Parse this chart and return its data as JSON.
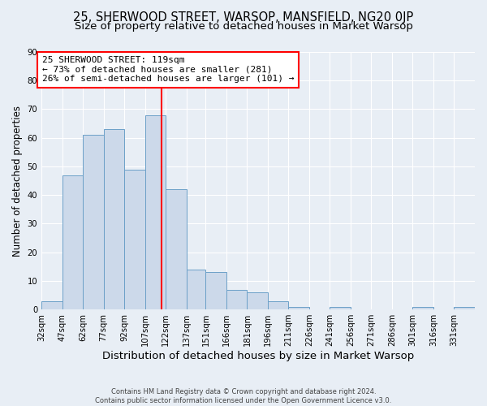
{
  "title1": "25, SHERWOOD STREET, WARSOP, MANSFIELD, NG20 0JP",
  "title2": "Size of property relative to detached houses in Market Warsop",
  "xlabel": "Distribution of detached houses by size in Market Warsop",
  "ylabel": "Number of detached properties",
  "footer1": "Contains HM Land Registry data © Crown copyright and database right 2024.",
  "footer2": "Contains public sector information licensed under the Open Government Licence v3.0.",
  "bin_labels": [
    "32sqm",
    "47sqm",
    "62sqm",
    "77sqm",
    "92sqm",
    "107sqm",
    "122sqm",
    "137sqm",
    "151sqm",
    "166sqm",
    "181sqm",
    "196sqm",
    "211sqm",
    "226sqm",
    "241sqm",
    "256sqm",
    "271sqm",
    "286sqm",
    "301sqm",
    "316sqm",
    "331sqm"
  ],
  "bin_edges": [
    32,
    47,
    62,
    77,
    92,
    107,
    122,
    137,
    151,
    166,
    181,
    196,
    211,
    226,
    241,
    256,
    271,
    286,
    301,
    316,
    331,
    346
  ],
  "bar_heights": [
    3,
    47,
    61,
    63,
    49,
    68,
    42,
    14,
    13,
    7,
    6,
    3,
    1,
    0,
    1,
    0,
    0,
    0,
    1,
    0,
    1
  ],
  "bar_color": "#ccd9ea",
  "bar_edge_color": "#6ca0c8",
  "property_value": 119,
  "vline_color": "red",
  "annotation_text": "25 SHERWOOD STREET: 119sqm\n← 73% of detached houses are smaller (281)\n26% of semi-detached houses are larger (101) →",
  "annotation_box_color": "white",
  "annotation_box_edge_color": "red",
  "ylim": [
    0,
    90
  ],
  "yticks": [
    0,
    10,
    20,
    30,
    40,
    50,
    60,
    70,
    80,
    90
  ],
  "background_color": "#e8eef5",
  "plot_bg_color": "#e8eef5",
  "grid_color": "white",
  "title1_fontsize": 10.5,
  "title2_fontsize": 9.5,
  "xlabel_fontsize": 9.5,
  "ylabel_fontsize": 8.5,
  "tick_fontsize": 7.2,
  "annotation_fontsize": 8.0,
  "footer_fontsize": 6.0
}
